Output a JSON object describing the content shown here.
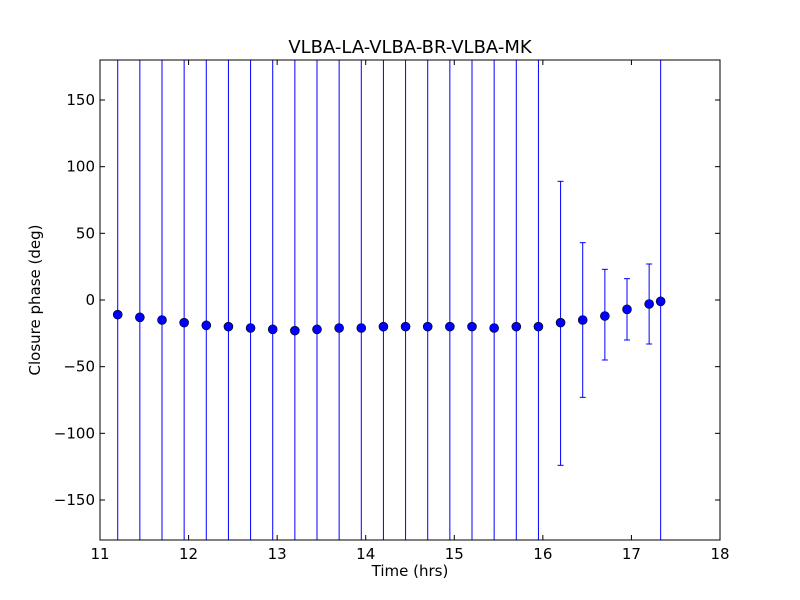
{
  "chart_data": {
    "type": "scatter",
    "title": "VLBA-LA-VLBA-BR-VLBA-MK",
    "xlabel": "Time (hrs)",
    "ylabel": "Closure phase (deg)",
    "xlim": [
      11,
      18
    ],
    "ylim": [
      -180,
      180
    ],
    "x_ticks": [
      11,
      12,
      13,
      14,
      15,
      16,
      17,
      18
    ],
    "y_ticks": [
      -150,
      -100,
      -50,
      0,
      50,
      100,
      150
    ],
    "x_tick_labels": [
      "11",
      "12",
      "13",
      "14",
      "15",
      "16",
      "17",
      "18"
    ],
    "y_tick_labels": [
      "−150",
      "−100",
      "−50",
      "0",
      "50",
      "100",
      "150"
    ],
    "grid": false,
    "legend": "none",
    "marker_color": "#0000ff",
    "errorbar_color": "#0000ff",
    "series": [
      {
        "x": [
          11.2,
          11.45,
          11.7,
          11.95,
          12.2,
          12.45,
          12.7,
          12.95,
          13.2,
          13.45,
          13.7,
          13.95,
          14.2,
          14.45,
          14.7,
          14.95,
          15.2,
          15.45,
          15.7,
          15.95,
          16.2,
          16.45,
          16.7,
          16.95,
          17.2,
          17.33
        ],
        "y": [
          -11,
          -13,
          -15,
          -17,
          -19,
          -20,
          -21,
          -22,
          -23,
          -22,
          -21,
          -21,
          -20,
          -20,
          -20,
          -20,
          -20,
          -21,
          -20,
          -20,
          -17,
          -15,
          -12,
          -7,
          -3,
          -1
        ],
        "yerr_lower": [
          null,
          null,
          null,
          null,
          null,
          null,
          null,
          null,
          null,
          null,
          null,
          null,
          null,
          null,
          null,
          null,
          null,
          null,
          null,
          null,
          -124,
          -73,
          -45,
          -30,
          -33,
          null
        ],
        "yerr_upper": [
          null,
          null,
          null,
          null,
          null,
          null,
          null,
          null,
          null,
          null,
          null,
          null,
          null,
          null,
          null,
          null,
          null,
          null,
          null,
          null,
          89,
          43,
          23,
          16,
          27,
          null
        ],
        "yerr_unbounded": [
          true,
          true,
          true,
          true,
          true,
          true,
          true,
          true,
          true,
          true,
          true,
          true,
          true,
          true,
          true,
          true,
          true,
          true,
          true,
          true,
          false,
          false,
          false,
          false,
          false,
          true
        ]
      }
    ]
  }
}
